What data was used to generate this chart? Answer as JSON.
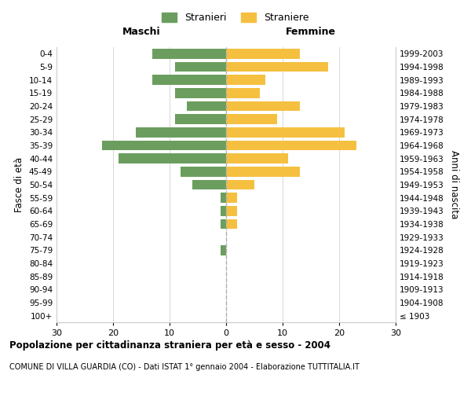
{
  "age_groups": [
    "100+",
    "95-99",
    "90-94",
    "85-89",
    "80-84",
    "75-79",
    "70-74",
    "65-69",
    "60-64",
    "55-59",
    "50-54",
    "45-49",
    "40-44",
    "35-39",
    "30-34",
    "25-29",
    "20-24",
    "15-19",
    "10-14",
    "5-9",
    "0-4"
  ],
  "birth_years": [
    "≤ 1903",
    "1904-1908",
    "1909-1913",
    "1914-1918",
    "1919-1923",
    "1924-1928",
    "1929-1933",
    "1934-1938",
    "1939-1943",
    "1944-1948",
    "1949-1953",
    "1954-1958",
    "1959-1963",
    "1964-1968",
    "1969-1973",
    "1974-1978",
    "1979-1983",
    "1984-1988",
    "1989-1993",
    "1994-1998",
    "1999-2003"
  ],
  "males": [
    0,
    0,
    0,
    0,
    0,
    1,
    0,
    1,
    1,
    1,
    6,
    8,
    19,
    22,
    16,
    9,
    7,
    9,
    13,
    9,
    13
  ],
  "females": [
    0,
    0,
    0,
    0,
    0,
    0,
    0,
    2,
    2,
    2,
    5,
    13,
    11,
    23,
    21,
    9,
    13,
    6,
    7,
    18,
    13
  ],
  "male_color": "#6b9e5e",
  "female_color": "#f5c040",
  "center_line_color": "#b0b0b0",
  "grid_color": "#d8d8d8",
  "background_color": "#ffffff",
  "title": "Popolazione per cittadinanza straniera per età e sesso - 2004",
  "subtitle": "COMUNE DI VILLA GUARDIA (CO) - Dati ISTAT 1° gennaio 2004 - Elaborazione TUTTITALIA.IT",
  "xlabel_left": "Maschi",
  "xlabel_right": "Femmine",
  "ylabel_left": "Fasce di età",
  "ylabel_right": "Anni di nascita",
  "xlim": 30,
  "legend_males": "Stranieri",
  "legend_females": "Straniere"
}
